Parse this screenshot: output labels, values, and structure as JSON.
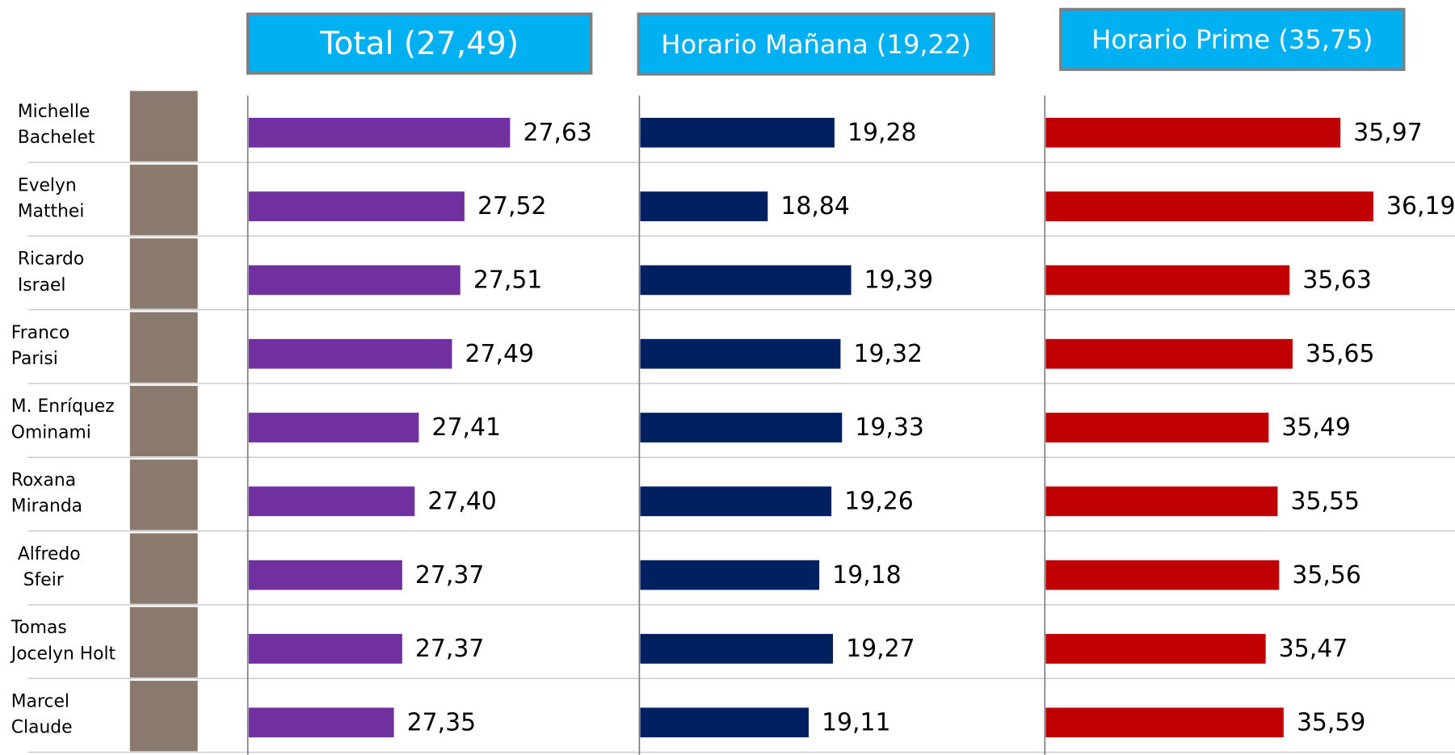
{
  "chart_data": [
    {
      "type": "bar",
      "orientation": "horizontal",
      "title": "Total (27,49)",
      "categories": [
        "Michelle\nBachelet",
        "Evelyn\nMatthei",
        "Ricardo\nIsrael",
        "Franco\nParisi",
        "M. Enríquez\nOminami",
        "Roxana\nMiranda",
        "Alfredo\n Sfeir",
        "Tomas\nJocelyn Holt",
        "Marcel\nClaude"
      ],
      "values": [
        27.63,
        27.52,
        27.51,
        27.49,
        27.41,
        27.4,
        27.37,
        27.37,
        27.35
      ],
      "value_labels": [
        "27,63",
        "27,52",
        "27,51",
        "27,49",
        "27,41",
        "27,40",
        "27,37",
        "27,37",
        "27,35"
      ],
      "color": "#7030a0",
      "xlim": [
        27.0,
        27.7
      ]
    },
    {
      "type": "bar",
      "orientation": "horizontal",
      "title": "Horario Mañana (19,22)",
      "values": [
        19.28,
        18.84,
        19.39,
        19.32,
        19.33,
        19.26,
        19.18,
        19.27,
        19.11
      ],
      "value_labels": [
        "19,28",
        "18,84",
        "19,39",
        "19,32",
        "19,33",
        "19,26",
        "19,18",
        "19,27",
        "19,11"
      ],
      "color": "#002060",
      "xlim": [
        18.0,
        20.0
      ]
    },
    {
      "type": "bar",
      "orientation": "horizontal",
      "title": "Horario Prime (35,75)",
      "values": [
        35.97,
        36.19,
        35.63,
        35.65,
        35.49,
        35.55,
        35.56,
        35.47,
        35.59
      ],
      "value_labels": [
        "35,97",
        "36,19",
        "35,63",
        "35,65",
        "35,49",
        "35,55",
        "35,56",
        "35,47",
        "35,59"
      ],
      "color": "#c00000",
      "xlim": [
        34.0,
        36.5
      ]
    }
  ]
}
